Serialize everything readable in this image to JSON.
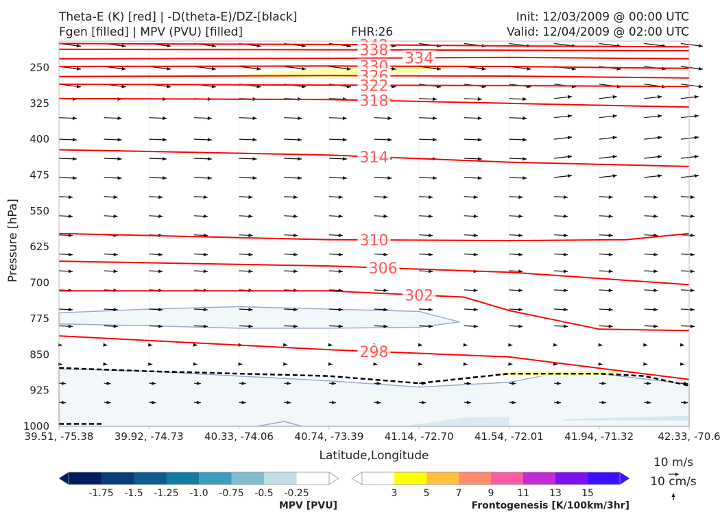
{
  "header": {
    "title_line1": "Theta-E (K) [red] | -D(theta-E)/DZ-[black]",
    "title_line2": "Fgen [filled] | MPV (PVU) [filled]",
    "fhr": "FHR:26",
    "init": "Init: 12/03/2009 @ 00:00 UTC",
    "valid": "Valid: 12/04/2009 @ 02:00 UTC"
  },
  "chart_data": {
    "type": "cross-section",
    "xlabel": "Latitude,Longitude",
    "ylabel": "Pressure [hPa]",
    "x_ticks": [
      "39.51, -75.38",
      "39.92, -74.73",
      "40.33, -74.06",
      "40.74, -73.39",
      "41.14, -72.70",
      "41.54, -72.01",
      "41.94, -71.32",
      "42.33, -70.6"
    ],
    "y_ticks": [
      250,
      325,
      400,
      475,
      550,
      625,
      700,
      775,
      850,
      925,
      1000
    ],
    "ylim": [
      1000,
      195
    ],
    "theta_e_contours": [
      {
        "label": "342",
        "points": [
          [
            0,
            200
          ],
          [
            3,
            202
          ],
          [
            5,
            205
          ],
          [
            7,
            207
          ]
        ]
      },
      {
        "label": "338",
        "points": [
          [
            0,
            212
          ],
          [
            3,
            213
          ],
          [
            5,
            214
          ],
          [
            7,
            215
          ]
        ]
      },
      {
        "label": "334",
        "points": [
          [
            0,
            232
          ],
          [
            3,
            231
          ],
          [
            5,
            229
          ],
          [
            7,
            232
          ]
        ]
      },
      {
        "label": "330",
        "points": [
          [
            0,
            248
          ],
          [
            3,
            247
          ],
          [
            5,
            248
          ],
          [
            7,
            252
          ]
        ]
      },
      {
        "label": "326",
        "points": [
          [
            0,
            269
          ],
          [
            3,
            267
          ],
          [
            5,
            268
          ],
          [
            7,
            272
          ]
        ]
      },
      {
        "label": "322",
        "points": [
          [
            0,
            285
          ],
          [
            3,
            287
          ],
          [
            5,
            288
          ],
          [
            7,
            290
          ]
        ]
      },
      {
        "label": "318",
        "points": [
          [
            0,
            315
          ],
          [
            3,
            317
          ],
          [
            5,
            325
          ],
          [
            7,
            333
          ]
        ]
      },
      {
        "label": "314",
        "points": [
          [
            0,
            422
          ],
          [
            3,
            433
          ],
          [
            5,
            448
          ],
          [
            7,
            457
          ]
        ]
      },
      {
        "label": "310",
        "points": [
          [
            0,
            597
          ],
          [
            3,
            610
          ],
          [
            5,
            612
          ],
          [
            6.3,
            610
          ],
          [
            7,
            597
          ]
        ]
      },
      {
        "label": "306",
        "points": [
          [
            0,
            655
          ],
          [
            3,
            665
          ],
          [
            5,
            678
          ],
          [
            7,
            704
          ]
        ]
      },
      {
        "label": "302",
        "points": [
          [
            0,
            717
          ],
          [
            3,
            717
          ],
          [
            4.5,
            730
          ],
          [
            5,
            758
          ],
          [
            6,
            797
          ],
          [
            7,
            800
          ]
        ]
      },
      {
        "label": "298",
        "points": [
          [
            0,
            811
          ],
          [
            3,
            840
          ],
          [
            5,
            855
          ],
          [
            7,
            902
          ]
        ]
      }
    ],
    "stability_line_dashed": [
      [
        0,
        878
      ],
      [
        1,
        885
      ],
      [
        2,
        890
      ],
      [
        3,
        895
      ],
      [
        4,
        910
      ],
      [
        5,
        890
      ],
      [
        6,
        890
      ],
      [
        6.5,
        895
      ],
      [
        7,
        915
      ]
    ],
    "mpv_shade_values": [
      -1.75,
      -1.5,
      -1.25,
      -1.0,
      -0.75,
      -0.5,
      -0.25
    ],
    "fgen_values": [
      3,
      5,
      7,
      9,
      11,
      13,
      15
    ],
    "colorbar_mpv_label": "MPV [PVU]",
    "colorbar_fgen_label": "Frontogenesis [K/100km/3hr]",
    "reference_vectors": [
      "10 m/s",
      "10 cm/s"
    ]
  },
  "colors": {
    "theta_e": "#ff0000",
    "theta_e_label": "#ff5a5a",
    "vector": "#111111",
    "mpv_fill": "#f2f8fa",
    "mpv_edge": "#9aaac9",
    "fgen_fill": "#ffff99",
    "mpv_bar": [
      "#021c60",
      "#093c7a",
      "#0f5a8c",
      "#137ba0",
      "#3d9dbd",
      "#7fbcd2",
      "#c0dee8",
      "#ffffff"
    ],
    "fgen_bar": [
      "#ffffff",
      "#ffff00",
      "#ffbf3f",
      "#ff8c6c",
      "#fa5ba6",
      "#c42ad6",
      "#7b10f0",
      "#3c10ff"
    ]
  }
}
